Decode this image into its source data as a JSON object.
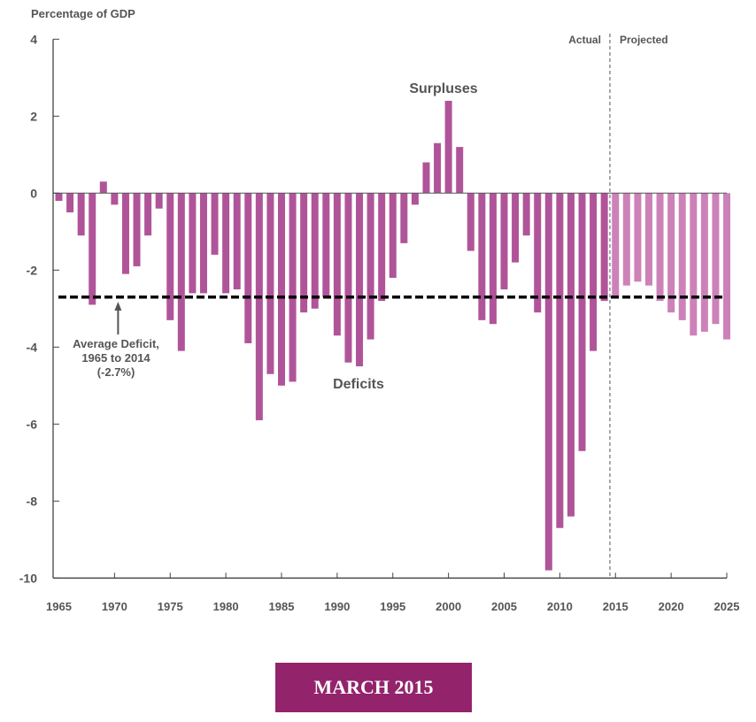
{
  "chart_data": {
    "type": "bar",
    "ylabel": "Percentage of GDP",
    "xlabel": "",
    "ylim": [
      -10,
      4
    ],
    "yticks": [
      4,
      2,
      0,
      -2,
      -4,
      -6,
      -8,
      -10
    ],
    "xticks": [
      1965,
      1970,
      1975,
      1980,
      1985,
      1990,
      1995,
      2000,
      2005,
      2010,
      2015,
      2020,
      2025
    ],
    "xlim": [
      1965,
      2025
    ],
    "series": [
      {
        "name": "Actual",
        "color": "#B0549A",
        "x": [
          1965,
          1966,
          1967,
          1968,
          1969,
          1970,
          1971,
          1972,
          1973,
          1974,
          1975,
          1976,
          1977,
          1978,
          1979,
          1980,
          1981,
          1982,
          1983,
          1984,
          1985,
          1986,
          1987,
          1988,
          1989,
          1990,
          1991,
          1992,
          1993,
          1994,
          1995,
          1996,
          1997,
          1998,
          1999,
          2000,
          2001,
          2002,
          2003,
          2004,
          2005,
          2006,
          2007,
          2008,
          2009,
          2010,
          2011,
          2012,
          2013,
          2014
        ],
        "values": [
          -0.2,
          -0.5,
          -1.1,
          -2.9,
          0.3,
          -0.3,
          -2.1,
          -1.9,
          -1.1,
          -0.4,
          -3.3,
          -4.1,
          -2.6,
          -2.6,
          -1.6,
          -2.6,
          -2.5,
          -3.9,
          -5.9,
          -4.7,
          -5.0,
          -4.9,
          -3.1,
          -3.0,
          -2.7,
          -3.7,
          -4.4,
          -4.5,
          -3.8,
          -2.8,
          -2.2,
          -1.3,
          -0.3,
          0.8,
          1.3,
          2.4,
          1.2,
          -1.5,
          -3.3,
          -3.4,
          -2.5,
          -1.8,
          -1.1,
          -3.1,
          -9.8,
          -8.7,
          -8.4,
          -6.7,
          -4.1,
          -2.8
        ]
      },
      {
        "name": "Projected",
        "color": "#CC82B8",
        "x": [
          2015,
          2016,
          2017,
          2018,
          2019,
          2020,
          2021,
          2022,
          2023,
          2024,
          2025
        ],
        "values": [
          -2.7,
          -2.4,
          -2.3,
          -2.4,
          -2.8,
          -3.1,
          -3.3,
          -3.7,
          -3.6,
          -3.4,
          -3.8
        ]
      }
    ],
    "reference_line": {
      "label": "Average Deficit, 1965 to 2014 (-2.7%)",
      "value": -2.7,
      "style": "dashed",
      "color": "#000000"
    },
    "divider": {
      "between": [
        2014,
        2015
      ],
      "left_label": "Actual",
      "right_label": "Projected"
    },
    "annotations": [
      {
        "text": "Surpluses",
        "near_year": 2000
      },
      {
        "text": "Deficits",
        "near_year": 1992
      },
      {
        "lines": [
          "Average Deficit,",
          "1965 to 2014",
          "(-2.7%)"
        ],
        "arrow_to_year": 1970
      }
    ],
    "grid": false,
    "legend": "none"
  },
  "banner": {
    "label": "MARCH 2015",
    "color": "#93246C"
  }
}
